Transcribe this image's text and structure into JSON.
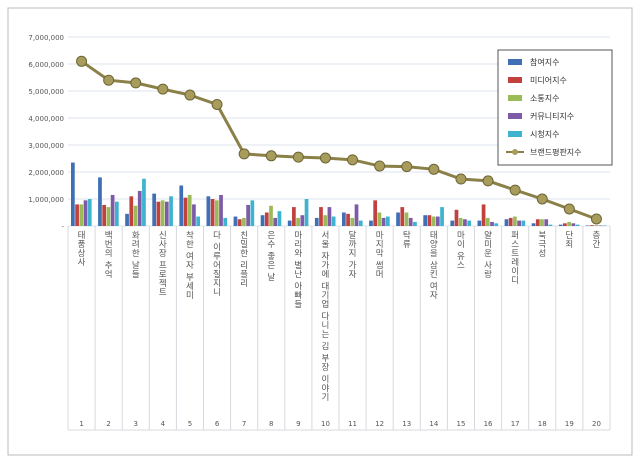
{
  "chart_data": {
    "type": "bar",
    "ylim": [
      0,
      7000000
    ],
    "yticks": [
      "-",
      "1,000,000",
      "2,000,000",
      "3,000,000",
      "4,000,000",
      "5,000,000",
      "6,000,000",
      "7,000,000"
    ],
    "grid": true,
    "legend_position": "top-right",
    "categories": [
      "태풍상사",
      "백번의 추억",
      "화려한 날들",
      "신사장 프로젝트",
      "착한 여자 부세미",
      "다 이루어질지니",
      "친밀한 리플리",
      "은수 좋은 날",
      "마리와 별난 아빠들",
      "서울 자가에 대기업 다니는 김 부장 이야기",
      "달까지 가자",
      "마지막 썸머",
      "탁류",
      "태양을 삼킨 여자",
      "마이 유스",
      "얄미운 사랑",
      "퍼스트레이디",
      "북극성",
      "단죄",
      "층간"
    ],
    "ranks": [
      "1",
      "2",
      "3",
      "4",
      "5",
      "6",
      "7",
      "8",
      "9",
      "10",
      "11",
      "12",
      "13",
      "14",
      "15",
      "16",
      "17",
      "18",
      "19",
      "20"
    ],
    "series": [
      {
        "name": "참여지수",
        "color": "#3f6fb5",
        "values": [
          2350000,
          1800000,
          450000,
          1200000,
          1500000,
          1100000,
          350000,
          400000,
          200000,
          300000,
          500000,
          200000,
          500000,
          400000,
          200000,
          200000,
          250000,
          100000,
          50000,
          20000
        ]
      },
      {
        "name": "미디어지수",
        "color": "#c0413d",
        "values": [
          800000,
          780000,
          1100000,
          900000,
          1050000,
          1000000,
          250000,
          500000,
          700000,
          700000,
          450000,
          950000,
          700000,
          400000,
          600000,
          800000,
          300000,
          250000,
          100000,
          30000
        ]
      },
      {
        "name": "소통지수",
        "color": "#9bbb59",
        "values": [
          800000,
          700000,
          750000,
          950000,
          1150000,
          950000,
          300000,
          750000,
          300000,
          400000,
          300000,
          500000,
          500000,
          350000,
          300000,
          300000,
          350000,
          250000,
          150000,
          30000
        ]
      },
      {
        "name": "커뮤니티지수",
        "color": "#7e5ba6",
        "values": [
          950000,
          1150000,
          1300000,
          900000,
          800000,
          1150000,
          780000,
          300000,
          400000,
          700000,
          800000,
          300000,
          300000,
          350000,
          250000,
          150000,
          200000,
          250000,
          100000,
          20000
        ]
      },
      {
        "name": "시청지수",
        "color": "#3db3cf",
        "values": [
          1000000,
          900000,
          1750000,
          1100000,
          350000,
          300000,
          950000,
          550000,
          1000000,
          350000,
          200000,
          350000,
          150000,
          700000,
          200000,
          100000,
          200000,
          50000,
          50000,
          20000
        ]
      },
      {
        "name": "브랜드평판지수",
        "color": "#8a8048",
        "type": "line",
        "values": [
          6100000,
          5400000,
          5300000,
          5070000,
          4850000,
          4500000,
          2670000,
          2600000,
          2550000,
          2520000,
          2450000,
          2220000,
          2200000,
          2100000,
          1740000,
          1670000,
          1330000,
          1000000,
          630000,
          260000
        ]
      }
    ]
  }
}
